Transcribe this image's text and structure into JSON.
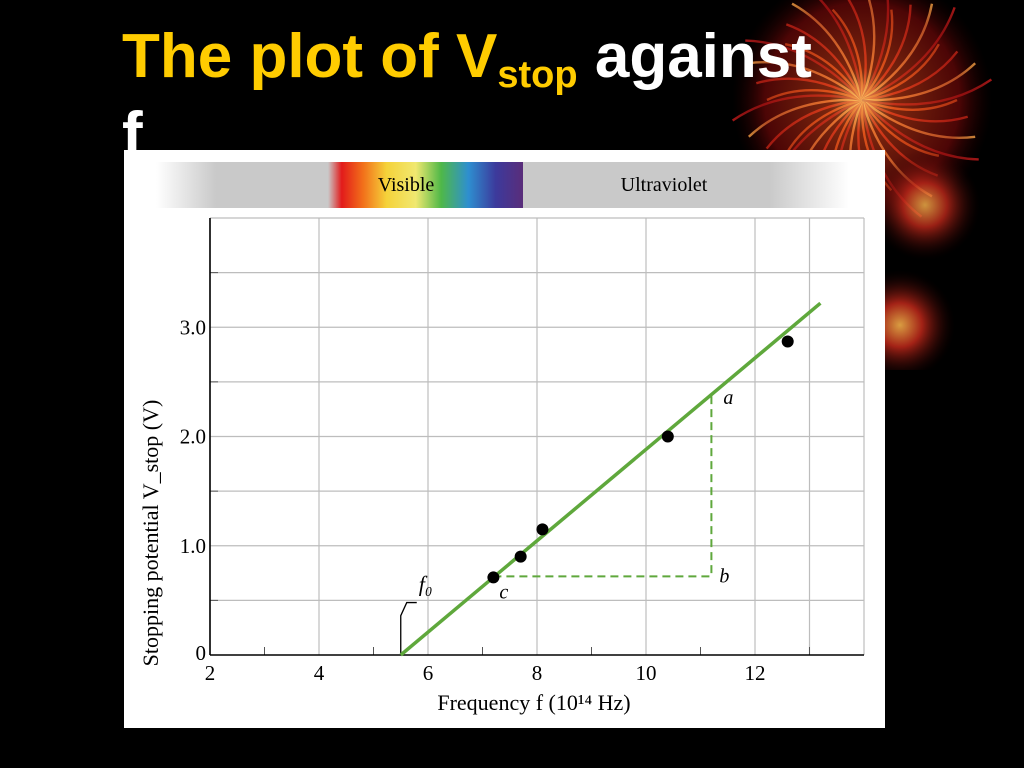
{
  "slide": {
    "title_part1": "The  plot of V",
    "title_sub": "stop",
    "title_part2": " against",
    "title_line2": "f"
  },
  "spectrum": {
    "visible_label": "Visible",
    "uv_label": "Ultraviolet"
  },
  "colors": {
    "title_yellow": "#FFCC00",
    "title_white": "#FFFFFF",
    "fit_line": "#5FA83C",
    "background": "#000000"
  },
  "chart_data": {
    "type": "scatter",
    "title": "",
    "xlabel": "Frequency f (10¹⁴ Hz)",
    "ylabel": "Stopping potential V_stop (V)",
    "xlim": [
      2,
      14
    ],
    "ylim": [
      0,
      4
    ],
    "grid": true,
    "x_ticks": [
      "2",
      "4",
      "6",
      "8",
      "10",
      "12"
    ],
    "x_tick_values": [
      2,
      4,
      6,
      8,
      10,
      12
    ],
    "y_ticks": [
      "0",
      "1.0",
      "2.0",
      "3.0"
    ],
    "y_tick_values": [
      0,
      1,
      2,
      3
    ],
    "series": [
      {
        "points": [
          {
            "x": 7.2,
            "y": 0.71
          },
          {
            "x": 7.7,
            "y": 0.9
          },
          {
            "x": 8.1,
            "y": 1.15
          },
          {
            "x": 10.4,
            "y": 2.0
          },
          {
            "x": 12.6,
            "y": 2.87
          }
        ]
      }
    ],
    "fit_line": {
      "x1": 5.5,
      "y1": 0.0,
      "x2": 13.2,
      "y2": 3.22
    },
    "triangle": {
      "a": {
        "x": 11.2,
        "y": 2.37
      },
      "b": {
        "x": 11.2,
        "y": 0.72
      },
      "c": {
        "x": 7.2,
        "y": 0.72
      }
    },
    "annotations": {
      "point_a": "a",
      "point_b": "b",
      "point_c": "c",
      "threshold": "f₀"
    },
    "threshold_x": 5.5
  }
}
